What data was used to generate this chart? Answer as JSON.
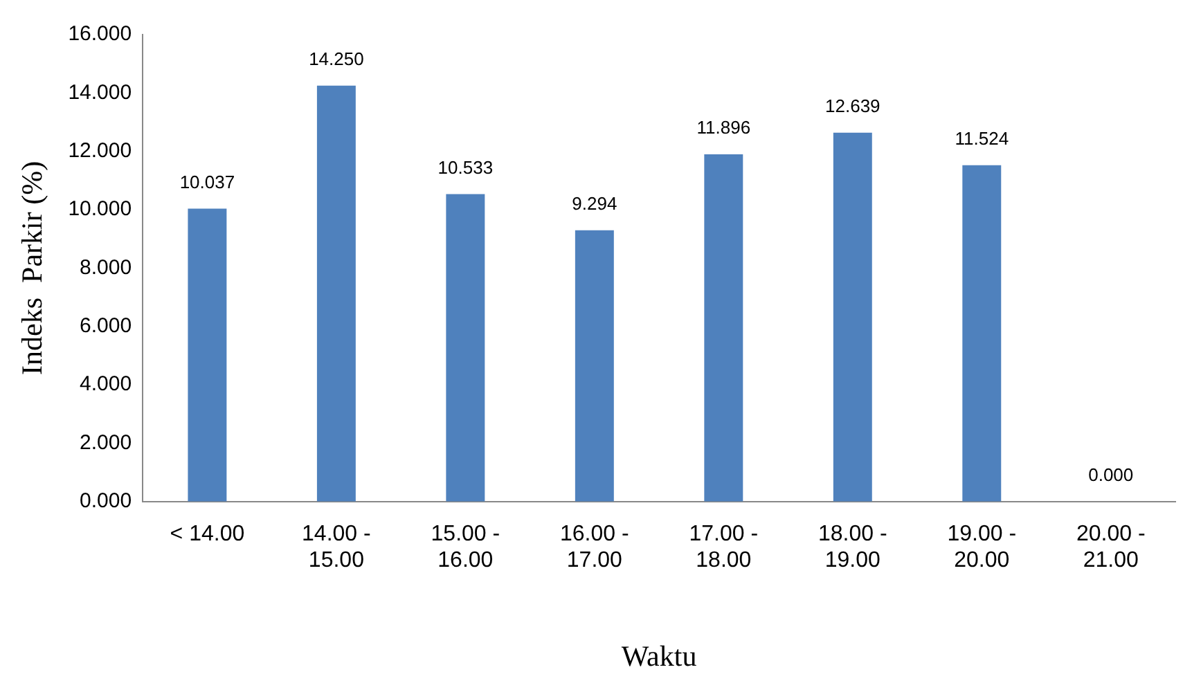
{
  "chart_data": {
    "type": "bar",
    "xlabel": "Waktu",
    "ylabel": "Indeks  Parkir (%)",
    "categories": [
      "< 14.00",
      "14.00 - 15.00",
      "15.00 - 16.00",
      "16.00 - 17.00",
      "17.00 - 18.00",
      "18.00 - 19.00",
      "19.00 - 20.00",
      "20.00 - 21.00"
    ],
    "values": [
      10.037,
      14.25,
      10.533,
      9.294,
      11.896,
      12.639,
      11.524,
      0
    ],
    "value_labels": [
      "10.037",
      "14.250",
      "10.533",
      "9.294",
      "11.896",
      "12.639",
      "11.524",
      "0.000"
    ],
    "color": "#4f81bd",
    "ylim": [
      0,
      16
    ],
    "yticks": [
      {
        "value": 0,
        "label": "0.000"
      },
      {
        "value": 2,
        "label": "2.000"
      },
      {
        "value": 4,
        "label": "4.000"
      },
      {
        "value": 6,
        "label": "6.000"
      },
      {
        "value": 8,
        "label": "8.000"
      },
      {
        "value": 10,
        "label": "10.000"
      },
      {
        "value": 12,
        "label": "12.000"
      },
      {
        "value": 14,
        "label": "14.000"
      },
      {
        "value": 16,
        "label": "16.000"
      }
    ],
    "grid": false,
    "legend": false
  }
}
